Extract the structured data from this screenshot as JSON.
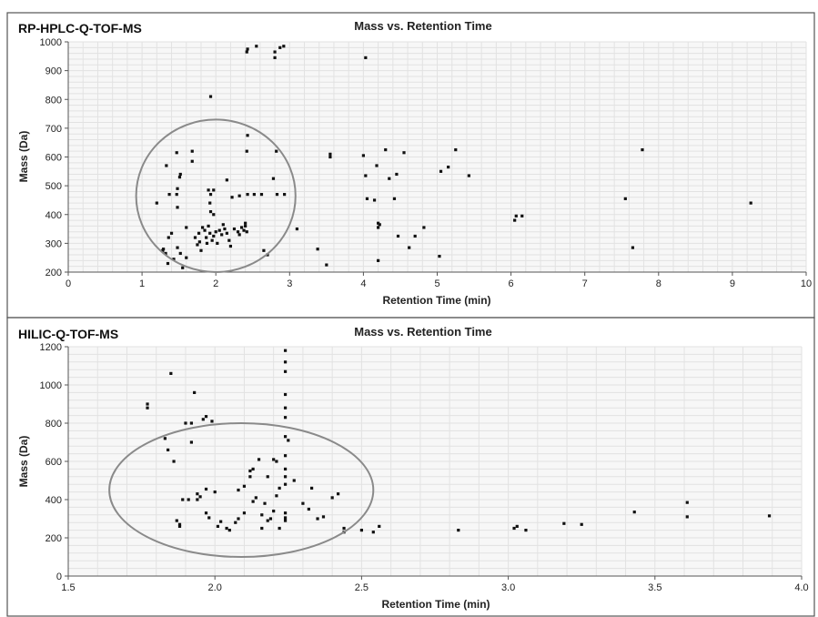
{
  "chart_data": [
    {
      "type": "scatter",
      "panel_label": "RP-HPLC-Q-TOF-MS",
      "title": "Mass vs. Retention Time",
      "xlabel": "Retention Time (min)",
      "ylabel": "Mass (Da)",
      "xlim": [
        0,
        10
      ],
      "ylim": [
        200,
        1000
      ],
      "x_ticks": [
        0,
        1,
        2,
        3,
        4,
        5,
        6,
        7,
        8,
        9,
        10
      ],
      "y_ticks": [
        200,
        300,
        400,
        500,
        600,
        700,
        800,
        900,
        1000
      ],
      "grid": true,
      "highlight_ellipse": {
        "cx": 2.0,
        "cy": 465,
        "rx": 1.08,
        "ry": 265
      },
      "points": [
        [
          2.42,
          965
        ],
        [
          2.43,
          975
        ],
        [
          2.55,
          985
        ],
        [
          2.8,
          965
        ],
        [
          2.8,
          945
        ],
        [
          2.87,
          980
        ],
        [
          2.92,
          985
        ],
        [
          4.03,
          945
        ],
        [
          1.93,
          810
        ],
        [
          2.43,
          675
        ],
        [
          2.42,
          620
        ],
        [
          2.82,
          620
        ],
        [
          1.47,
          615
        ],
        [
          1.68,
          620
        ],
        [
          1.68,
          585
        ],
        [
          1.33,
          570
        ],
        [
          1.52,
          540
        ],
        [
          1.51,
          530
        ],
        [
          1.9,
          485
        ],
        [
          1.97,
          485
        ],
        [
          2.15,
          520
        ],
        [
          1.2,
          440
        ],
        [
          1.37,
          470
        ],
        [
          1.47,
          470
        ],
        [
          1.48,
          490
        ],
        [
          1.48,
          425
        ],
        [
          1.93,
          470
        ],
        [
          1.92,
          440
        ],
        [
          2.22,
          460
        ],
        [
          2.32,
          465
        ],
        [
          2.43,
          470
        ],
        [
          2.52,
          470
        ],
        [
          2.62,
          470
        ],
        [
          2.78,
          525
        ],
        [
          2.83,
          470
        ],
        [
          2.93,
          470
        ],
        [
          1.97,
          400
        ],
        [
          1.93,
          410
        ],
        [
          1.28,
          275
        ],
        [
          1.29,
          280
        ],
        [
          1.32,
          265
        ],
        [
          1.36,
          320
        ],
        [
          1.4,
          335
        ],
        [
          1.43,
          245
        ],
        [
          1.48,
          285
        ],
        [
          1.52,
          265
        ],
        [
          1.6,
          355
        ],
        [
          1.72,
          320
        ],
        [
          1.75,
          295
        ],
        [
          1.77,
          335
        ],
        [
          1.78,
          305
        ],
        [
          1.8,
          275
        ],
        [
          1.82,
          355
        ],
        [
          1.85,
          345
        ],
        [
          1.87,
          320
        ],
        [
          1.88,
          300
        ],
        [
          1.9,
          360
        ],
        [
          1.92,
          335
        ],
        [
          1.95,
          310
        ],
        [
          1.97,
          325
        ],
        [
          2.0,
          340
        ],
        [
          2.02,
          300
        ],
        [
          2.05,
          345
        ],
        [
          2.08,
          330
        ],
        [
          2.1,
          365
        ],
        [
          2.12,
          350
        ],
        [
          2.15,
          335
        ],
        [
          2.18,
          310
        ],
        [
          2.2,
          290
        ],
        [
          2.25,
          350
        ],
        [
          2.3,
          340
        ],
        [
          2.32,
          330
        ],
        [
          2.35,
          355
        ],
        [
          2.38,
          345
        ],
        [
          2.4,
          370
        ],
        [
          2.4,
          360
        ],
        [
          2.42,
          340
        ],
        [
          2.65,
          275
        ],
        [
          2.7,
          260
        ],
        [
          1.35,
          230
        ],
        [
          1.55,
          215
        ],
        [
          1.6,
          250
        ],
        [
          3.1,
          350
        ],
        [
          3.38,
          280
        ],
        [
          3.5,
          225
        ],
        [
          3.55,
          610
        ],
        [
          3.55,
          600
        ],
        [
          4.0,
          605
        ],
        [
          4.03,
          535
        ],
        [
          4.05,
          455
        ],
        [
          4.15,
          450
        ],
        [
          4.18,
          570
        ],
        [
          4.2,
          355
        ],
        [
          4.2,
          370
        ],
        [
          4.22,
          365
        ],
        [
          4.2,
          240
        ],
        [
          4.3,
          625
        ],
        [
          4.35,
          525
        ],
        [
          4.42,
          455
        ],
        [
          4.45,
          540
        ],
        [
          4.47,
          325
        ],
        [
          4.55,
          615
        ],
        [
          4.62,
          285
        ],
        [
          4.7,
          325
        ],
        [
          4.82,
          355
        ],
        [
          5.03,
          255
        ],
        [
          5.05,
          550
        ],
        [
          5.15,
          565
        ],
        [
          5.25,
          625
        ],
        [
          5.43,
          535
        ],
        [
          6.05,
          380
        ],
        [
          6.07,
          395
        ],
        [
          6.15,
          395
        ],
        [
          7.55,
          455
        ],
        [
          7.65,
          285
        ],
        [
          7.78,
          625
        ],
        [
          9.25,
          440
        ]
      ]
    },
    {
      "type": "scatter",
      "panel_label": "HILIC-Q-TOF-MS",
      "title": "Mass vs. Retention Time",
      "xlabel": "Retention Time (min)",
      "ylabel": "Mass (Da)",
      "xlim": [
        1.5,
        4.0
      ],
      "ylim": [
        0,
        1200
      ],
      "x_ticks": [
        1.5,
        2.0,
        2.5,
        3.0,
        3.5,
        4.0
      ],
      "x_tick_labels": [
        "1.5",
        "2.0",
        "2.5",
        "3.0",
        "3.5",
        "4.0"
      ],
      "y_ticks": [
        0,
        200,
        400,
        600,
        800,
        1000,
        1200
      ],
      "grid": true,
      "highlight_ellipse": {
        "cx": 2.09,
        "cy": 450,
        "rx": 0.45,
        "ry": 350
      },
      "points": [
        [
          1.77,
          900
        ],
        [
          1.77,
          880
        ],
        [
          1.85,
          1060
        ],
        [
          1.83,
          720
        ],
        [
          1.84,
          660
        ],
        [
          1.86,
          600
        ],
        [
          1.87,
          290
        ],
        [
          1.88,
          260
        ],
        [
          1.88,
          270
        ],
        [
          1.9,
          800
        ],
        [
          1.92,
          800
        ],
        [
          1.93,
          960
        ],
        [
          1.94,
          430
        ],
        [
          1.92,
          700
        ],
        [
          1.96,
          820
        ],
        [
          1.97,
          835
        ],
        [
          1.99,
          810
        ],
        [
          1.97,
          455
        ],
        [
          1.97,
          330
        ],
        [
          1.98,
          305
        ],
        [
          2.0,
          440
        ],
        [
          1.89,
          400
        ],
        [
          1.91,
          400
        ],
        [
          1.94,
          400
        ],
        [
          1.95,
          415
        ],
        [
          2.01,
          260
        ],
        [
          2.02,
          285
        ],
        [
          2.04,
          250
        ],
        [
          2.05,
          240
        ],
        [
          2.07,
          280
        ],
        [
          2.08,
          300
        ],
        [
          2.08,
          450
        ],
        [
          2.1,
          330
        ],
        [
          2.1,
          470
        ],
        [
          2.12,
          520
        ],
        [
          2.12,
          550
        ],
        [
          2.13,
          560
        ],
        [
          2.13,
          390
        ],
        [
          2.14,
          410
        ],
        [
          2.15,
          610
        ],
        [
          2.16,
          250
        ],
        [
          2.16,
          320
        ],
        [
          2.17,
          380
        ],
        [
          2.18,
          290
        ],
        [
          2.18,
          520
        ],
        [
          2.19,
          300
        ],
        [
          2.2,
          610
        ],
        [
          2.2,
          340
        ],
        [
          2.21,
          420
        ],
        [
          2.21,
          600
        ],
        [
          2.22,
          460
        ],
        [
          2.22,
          250
        ],
        [
          2.24,
          1180
        ],
        [
          2.24,
          1120
        ],
        [
          2.24,
          1070
        ],
        [
          2.24,
          950
        ],
        [
          2.24,
          880
        ],
        [
          2.24,
          830
        ],
        [
          2.24,
          730
        ],
        [
          2.24,
          630
        ],
        [
          2.24,
          560
        ],
        [
          2.24,
          520
        ],
        [
          2.24,
          480
        ],
        [
          2.24,
          330
        ],
        [
          2.24,
          305
        ],
        [
          2.24,
          290
        ],
        [
          2.25,
          710
        ],
        [
          2.27,
          500
        ],
        [
          2.3,
          380
        ],
        [
          2.32,
          350
        ],
        [
          2.33,
          460
        ],
        [
          2.35,
          300
        ],
        [
          2.37,
          310
        ],
        [
          2.4,
          410
        ],
        [
          2.42,
          430
        ],
        [
          2.44,
          250
        ],
        [
          2.44,
          230
        ],
        [
          2.5,
          240
        ],
        [
          2.54,
          230
        ],
        [
          2.56,
          260
        ],
        [
          2.83,
          240
        ],
        [
          3.02,
          250
        ],
        [
          3.03,
          260
        ],
        [
          3.06,
          240
        ],
        [
          3.19,
          275
        ],
        [
          3.25,
          270
        ],
        [
          3.43,
          335
        ],
        [
          3.61,
          385
        ],
        [
          3.61,
          310
        ],
        [
          3.89,
          315
        ]
      ]
    }
  ]
}
